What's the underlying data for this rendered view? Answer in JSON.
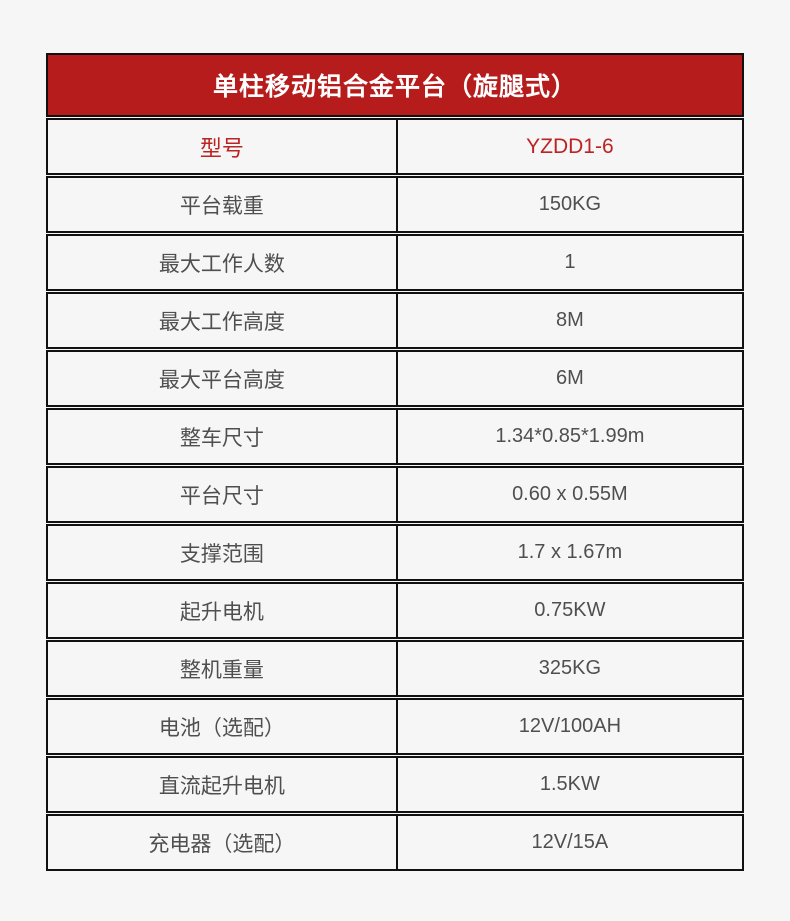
{
  "colors": {
    "page_bg": "#f6f6f6",
    "cell_bg": "#f6f6f6",
    "border": "#111111",
    "header_bg": "#b71c1c",
    "header_fg": "#ffffff",
    "accent_text": "#bc2323",
    "body_text": "#4f4f4f"
  },
  "table": {
    "title": "单柱移动铝合金平台（旋腿式）",
    "rows": [
      {
        "label": "型号",
        "value": "YZDD1-6",
        "accent": true
      },
      {
        "label": "平台载重",
        "value": "150KG"
      },
      {
        "label": "最大工作人数",
        "value": "1"
      },
      {
        "label": "最大工作高度",
        "value": "8M"
      },
      {
        "label": "最大平台高度",
        "value": "6M"
      },
      {
        "label": "整车尺寸",
        "value": "1.34*0.85*1.99m"
      },
      {
        "label": "平台尺寸",
        "value": "0.60 x 0.55M"
      },
      {
        "label": "支撑范围",
        "value": "1.7 x 1.67m"
      },
      {
        "label": "起升电机",
        "value": "0.75KW"
      },
      {
        "label": "整机重量",
        "value": "325KG"
      },
      {
        "label": "电池（选配）",
        "value": "12V/100AH"
      },
      {
        "label": "直流起升电机",
        "value": "1.5KW"
      },
      {
        "label": "充电器（选配）",
        "value": "12V/15A"
      }
    ]
  }
}
